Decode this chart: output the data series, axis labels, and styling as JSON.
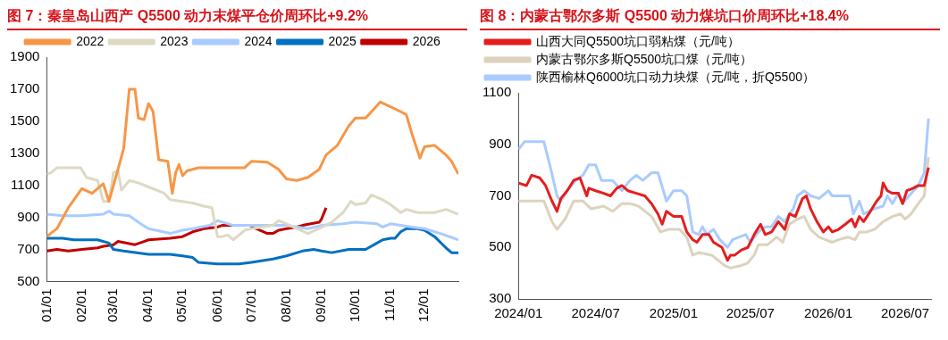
{
  "chart_data": [
    {
      "type": "line",
      "title": "图 7：秦皇岛山西产 Q5500 动力末煤平仓价周环比+9.2%",
      "legend": "top",
      "grid": false,
      "xlim": [
        "--01-01",
        "--12-31"
      ],
      "ylim": [
        500,
        1900
      ],
      "yticks": [
        500,
        700,
        900,
        1100,
        1300,
        1500,
        1700,
        1900
      ],
      "xticks": [
        {
          "value": "--01-01",
          "label": "01/01"
        },
        {
          "value": "--02-01",
          "label": "02/01"
        },
        {
          "value": "--03-01",
          "label": "03/01"
        },
        {
          "value": "--04-01",
          "label": "04/01"
        },
        {
          "value": "--05-01",
          "label": "05/01"
        },
        {
          "value": "--06-01",
          "label": "06/01"
        },
        {
          "value": "--07-01",
          "label": "07/01"
        },
        {
          "value": "--08-01",
          "label": "08/01"
        },
        {
          "value": "--09-01",
          "label": "09/01"
        },
        {
          "value": "--10-01",
          "label": "10/01"
        },
        {
          "value": "--11-01",
          "label": "11/01"
        },
        {
          "value": "--12-01",
          "label": "12/01"
        }
      ],
      "series": [
        {
          "name": "2022",
          "color": "#f79646",
          "x": [
            "--01-01",
            "--01-10",
            "--01-20",
            "--02-01",
            "--02-10",
            "--02-20",
            "--02-25",
            "--03-01",
            "--03-05",
            "--03-10",
            "--03-15",
            "--03-20",
            "--03-23",
            "--03-28",
            "--04-01",
            "--04-05",
            "--04-10",
            "--04-18",
            "--04-22",
            "--04-25",
            "--04-28",
            "--05-01",
            "--05-05",
            "--05-15",
            "--06-01",
            "--06-25",
            "--07-01",
            "--07-15",
            "--07-25",
            "--08-01",
            "--08-10",
            "--08-20",
            "--08-30",
            "--09-05",
            "--09-15",
            "--09-25",
            "--10-01",
            "--10-10",
            "--10-23",
            "--11-01",
            "--11-10",
            "--11-15",
            "--11-20",
            "--11-27",
            "--12-01",
            "--12-10",
            "--12-20",
            "--12-25",
            "--12-31"
          ],
          "values": [
            780,
            830,
            960,
            1080,
            1050,
            1110,
            1000,
            1100,
            1200,
            1330,
            1700,
            1700,
            1520,
            1510,
            1610,
            1560,
            1260,
            1250,
            1050,
            1180,
            1230,
            1160,
            1190,
            1210,
            1210,
            1210,
            1250,
            1245,
            1200,
            1140,
            1130,
            1150,
            1200,
            1290,
            1350,
            1470,
            1520,
            1520,
            1620,
            1590,
            1560,
            1540,
            1420,
            1270,
            1340,
            1350,
            1290,
            1250,
            1170
          ]
        },
        {
          "name": "2023",
          "color": "#ddd9c3",
          "x": [
            "--01-01",
            "--01-05",
            "--01-10",
            "--01-31",
            "--02-05",
            "--02-15",
            "--02-20",
            "--02-25",
            "--03-01",
            "--03-05",
            "--03-08",
            "--03-15",
            "--03-25",
            "--04-01",
            "--04-15",
            "--04-20",
            "--05-01",
            "--05-10",
            "--05-20",
            "--05-27",
            "--06-01",
            "--06-05",
            "--06-10",
            "--06-15",
            "--06-25",
            "--07-01",
            "--07-20",
            "--07-25",
            "--08-01",
            "--08-10",
            "--08-20",
            "--08-30",
            "--09-10",
            "--09-20",
            "--09-27",
            "--10-01",
            "--10-10",
            "--10-15",
            "--10-25",
            "--11-01",
            "--11-10",
            "--11-15",
            "--11-25",
            "--12-10",
            "--12-20",
            "--12-31"
          ],
          "values": [
            1170,
            1180,
            1210,
            1210,
            1150,
            1130,
            1000,
            1000,
            1180,
            1190,
            1070,
            1130,
            1110,
            1090,
            1050,
            1010,
            1000,
            990,
            970,
            960,
            780,
            780,
            790,
            760,
            820,
            830,
            850,
            880,
            860,
            830,
            800,
            830,
            870,
            930,
            1000,
            980,
            990,
            1040,
            1010,
            980,
            930,
            950,
            930,
            930,
            950,
            920
          ]
        },
        {
          "name": "2024",
          "color": "#a9cbff",
          "x": [
            "--01-01",
            "--01-15",
            "--02-01",
            "--02-20",
            "--02-25",
            "--03-01",
            "--03-15",
            "--03-25",
            "--04-01",
            "--04-20",
            "--05-01",
            "--05-10",
            "--05-25",
            "--06-01",
            "--06-15",
            "--07-01",
            "--08-01",
            "--08-20",
            "--09-01",
            "--09-20",
            "--10-01",
            "--10-20",
            "--10-25",
            "--11-01",
            "--11-20",
            "--12-01",
            "--12-15",
            "--12-31"
          ],
          "values": [
            920,
            910,
            910,
            920,
            940,
            920,
            910,
            860,
            830,
            800,
            820,
            830,
            850,
            880,
            850,
            850,
            850,
            830,
            850,
            860,
            870,
            860,
            840,
            860,
            840,
            830,
            800,
            760
          ]
        },
        {
          "name": "2025",
          "color": "#0070c0",
          "x": [
            "--01-01",
            "--01-15",
            "--01-25",
            "--02-15",
            "--02-25",
            "--03-01",
            "--03-10",
            "--04-01",
            "--04-20",
            "--05-01",
            "--05-10",
            "--05-15",
            "--06-01",
            "--06-20",
            "--07-01",
            "--07-20",
            "--08-01",
            "--08-15",
            "--08-25",
            "--09-01",
            "--09-10",
            "--09-25",
            "--10-01",
            "--10-10",
            "--10-20",
            "--10-25",
            "--11-01",
            "--11-05",
            "--11-10",
            "--11-15",
            "--11-25",
            "--12-01",
            "--12-10",
            "--12-20",
            "--12-25",
            "--12-31"
          ],
          "values": [
            770,
            770,
            760,
            760,
            740,
            700,
            690,
            670,
            670,
            660,
            650,
            620,
            610,
            610,
            620,
            640,
            660,
            690,
            700,
            690,
            680,
            700,
            700,
            700,
            740,
            760,
            770,
            770,
            810,
            830,
            830,
            820,
            780,
            710,
            680,
            680
          ]
        },
        {
          "name": "2026",
          "color": "#c00000",
          "x": [
            "--01-01",
            "--01-10",
            "--01-20",
            "--02-01",
            "--02-15",
            "--02-20",
            "--03-01",
            "--03-05",
            "--03-20",
            "--03-28",
            "--04-01",
            "--04-20",
            "--05-01",
            "--05-10",
            "--05-20",
            "--06-01",
            "--06-05",
            "--06-30",
            "--07-05",
            "--07-15",
            "--07-20",
            "--07-25",
            "--08-01",
            "--08-10",
            "--08-15",
            "--08-30",
            "--09-01",
            "--09-05"
          ],
          "values": [
            690,
            700,
            690,
            700,
            710,
            720,
            730,
            750,
            730,
            750,
            760,
            770,
            780,
            810,
            830,
            840,
            850,
            850,
            830,
            800,
            800,
            820,
            830,
            840,
            850,
            870,
            890,
            960
          ]
        }
      ]
    },
    {
      "type": "line",
      "title": "图 8：内蒙古鄂尔多斯 Q5500 动力煤坑口价周环比+18.4%",
      "legend": "top left",
      "grid": false,
      "xlim": [
        "2024-01-01",
        "2026-08-31"
      ],
      "ylim": [
        300,
        1100
      ],
      "yticks": [
        300,
        500,
        700,
        900,
        1100
      ],
      "xticks": [
        {
          "value": "2024-01-01",
          "label": "2024/01"
        },
        {
          "value": "2024-07-01",
          "label": "2024/07"
        },
        {
          "value": "2025-01-01",
          "label": "2025/01"
        },
        {
          "value": "2025-07-01",
          "label": "2025/07"
        },
        {
          "value": "2026-01-01",
          "label": "2026/01"
        },
        {
          "value": "2026-07-01",
          "label": "2026/07"
        }
      ],
      "series": [
        {
          "name": "山西大同Q5500坑口弱粘煤（元/吨）",
          "color": "#e41e1e",
          "x": [
            "2024-01-01",
            "2024-01-20",
            "2024-02-01",
            "2024-02-20",
            "2024-03-05",
            "2024-03-20",
            "2024-04-01",
            "2024-04-10",
            "2024-04-25",
            "2024-05-10",
            "2024-05-25",
            "2024-06-10",
            "2024-06-15",
            "2024-07-01",
            "2024-07-20",
            "2024-08-05",
            "2024-08-20",
            "2024-09-01",
            "2024-09-15",
            "2024-10-05",
            "2024-10-25",
            "2024-11-10",
            "2024-11-25",
            "2024-12-05",
            "2024-12-15",
            "2025-01-01",
            "2025-01-20",
            "2025-02-01",
            "2025-02-15",
            "2025-02-25",
            "2025-03-10",
            "2025-03-25",
            "2025-04-05",
            "2025-04-25",
            "2025-05-08",
            "2025-05-15",
            "2025-05-25",
            "2025-06-10",
            "2025-06-25",
            "2025-07-10",
            "2025-07-25",
            "2025-08-05",
            "2025-08-20",
            "2025-09-05",
            "2025-09-20",
            "2025-10-01",
            "2025-10-15",
            "2025-11-01",
            "2025-11-10",
            "2025-11-20",
            "2025-12-05",
            "2025-12-20",
            "2026-01-01",
            "2026-01-10",
            "2026-01-25",
            "2026-02-10",
            "2026-02-25",
            "2026-03-05",
            "2026-03-15",
            "2026-03-25",
            "2026-04-10",
            "2026-04-25",
            "2026-05-05",
            "2026-05-10",
            "2026-05-20",
            "2026-06-01",
            "2026-06-15",
            "2026-06-25",
            "2026-07-05",
            "2026-07-20",
            "2026-08-01",
            "2026-08-15",
            "2026-08-25"
          ],
          "values": [
            750,
            740,
            780,
            770,
            740,
            680,
            640,
            690,
            720,
            760,
            770,
            700,
            730,
            720,
            710,
            700,
            730,
            740,
            720,
            710,
            700,
            670,
            630,
            590,
            640,
            620,
            620,
            560,
            530,
            520,
            550,
            550,
            520,
            500,
            450,
            470,
            470,
            490,
            500,
            550,
            590,
            550,
            560,
            600,
            570,
            630,
            620,
            690,
            700,
            650,
            600,
            560,
            580,
            560,
            570,
            590,
            610,
            580,
            620,
            600,
            640,
            680,
            700,
            750,
            720,
            710,
            710,
            670,
            720,
            730,
            740,
            740,
            810
          ]
        },
        {
          "name": "内蒙古鄂尔多斯Q5500坑口煤（元/吨）",
          "color": "#ddd3bd",
          "x": [
            "2024-01-01",
            "2024-02-01",
            "2024-03-01",
            "2024-03-20",
            "2024-04-01",
            "2024-04-20",
            "2024-05-10",
            "2024-06-01",
            "2024-06-20",
            "2024-07-20",
            "2024-08-10",
            "2024-09-01",
            "2024-09-20",
            "2024-10-10",
            "2024-11-10",
            "2024-12-01",
            "2024-12-20",
            "2025-01-15",
            "2025-02-01",
            "2025-02-15",
            "2025-03-01",
            "2025-04-01",
            "2025-05-01",
            "2025-05-15",
            "2025-06-10",
            "2025-06-25",
            "2025-07-10",
            "2025-07-20",
            "2025-08-10",
            "2025-09-01",
            "2025-09-15",
            "2025-10-01",
            "2025-10-20",
            "2025-11-05",
            "2025-11-20",
            "2025-12-10",
            "2025-12-25",
            "2026-01-10",
            "2026-01-25",
            "2026-02-15",
            "2026-03-05",
            "2026-03-15",
            "2026-04-01",
            "2026-04-20",
            "2026-05-10",
            "2026-06-01",
            "2026-06-20",
            "2026-07-01",
            "2026-07-15",
            "2026-08-01",
            "2026-08-15",
            "2026-08-25"
          ],
          "values": [
            680,
            680,
            680,
            600,
            570,
            610,
            680,
            680,
            650,
            660,
            640,
            670,
            670,
            660,
            620,
            560,
            570,
            570,
            540,
            470,
            480,
            470,
            430,
            420,
            430,
            440,
            470,
            510,
            510,
            540,
            520,
            590,
            610,
            620,
            570,
            540,
            530,
            520,
            530,
            540,
            530,
            560,
            560,
            570,
            600,
            620,
            630,
            610,
            630,
            670,
            700,
            850
          ]
        },
        {
          "name": "陕西榆林Q6000坑口动力块煤（元/吨，折Q5500）",
          "color": "#a9cbff",
          "x": [
            "2024-01-01",
            "2024-01-15",
            "2024-02-15",
            "2024-03-01",
            "2024-03-15",
            "2024-04-01",
            "2024-04-10",
            "2024-04-25",
            "2024-05-15",
            "2024-06-01",
            "2024-06-15",
            "2024-07-01",
            "2024-07-15",
            "2024-08-10",
            "2024-09-01",
            "2024-09-20",
            "2024-10-05",
            "2024-10-20",
            "2024-11-10",
            "2024-11-25",
            "2024-12-15",
            "2025-01-01",
            "2025-01-20",
            "2025-02-01",
            "2025-02-15",
            "2025-03-01",
            "2025-03-10",
            "2025-03-20",
            "2025-04-05",
            "2025-04-20",
            "2025-05-08",
            "2025-05-20",
            "2025-06-05",
            "2025-06-20",
            "2025-07-01",
            "2025-07-20",
            "2025-08-05",
            "2025-08-20",
            "2025-09-05",
            "2025-09-20",
            "2025-10-10",
            "2025-10-20",
            "2025-11-05",
            "2025-11-20",
            "2025-12-10",
            "2026-01-01",
            "2026-01-10",
            "2026-02-20",
            "2026-03-01",
            "2026-03-15",
            "2026-03-25",
            "2026-04-20",
            "2026-05-10",
            "2026-05-20",
            "2026-06-01",
            "2026-06-15",
            "2026-06-25",
            "2026-07-10",
            "2026-08-01",
            "2026-08-15",
            "2026-08-25"
          ],
          "values": [
            880,
            910,
            910,
            910,
            820,
            700,
            680,
            720,
            760,
            780,
            820,
            820,
            760,
            760,
            720,
            760,
            780,
            760,
            790,
            790,
            680,
            720,
            720,
            700,
            560,
            550,
            580,
            550,
            570,
            530,
            500,
            530,
            540,
            550,
            520,
            560,
            580,
            580,
            620,
            600,
            650,
            700,
            720,
            700,
            690,
            720,
            700,
            700,
            630,
            680,
            630,
            650,
            660,
            700,
            670,
            710,
            670,
            700,
            740,
            790,
            1000
          ]
        }
      ]
    }
  ]
}
